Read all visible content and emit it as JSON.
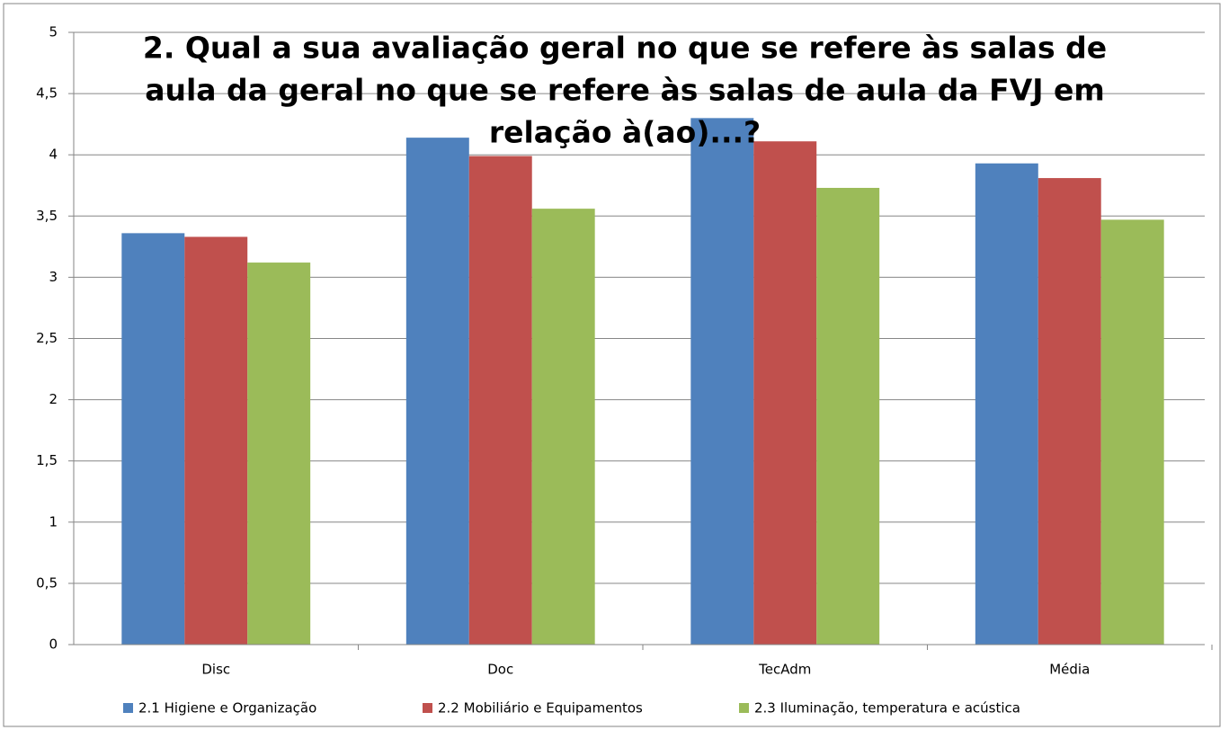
{
  "chart_data": {
    "type": "bar",
    "title": [
      "2. Qual a sua avaliação geral no que se refere às salas de",
      "aula da geral no que se refere às salas de aula da FVJ em",
      "relação à(ao)...?"
    ],
    "categories": [
      "Disc",
      "Doc",
      "TecAdm",
      "Média"
    ],
    "series": [
      {
        "name": "2.1 Higiene e Organização",
        "color": "#4f81bd",
        "values": [
          3.36,
          4.14,
          4.3,
          3.93
        ]
      },
      {
        "name": "2.2 Mobiliário e Equipamentos",
        "color": "#c0504d",
        "values": [
          3.33,
          3.99,
          4.11,
          3.81
        ]
      },
      {
        "name": "2.3 Iluminação, temperatura e acústica",
        "color": "#9bbb59",
        "values": [
          3.12,
          3.56,
          3.73,
          3.47
        ]
      }
    ],
    "ylim": [
      0,
      5
    ],
    "yticks": [
      0,
      {
        "value": 0.5,
        "label": "0,5"
      },
      1,
      {
        "value": 1.5,
        "label": "1,5"
      },
      2,
      {
        "value": 2.5,
        "label": "2,5"
      },
      3,
      {
        "value": 3.5,
        "label": "3,5"
      },
      4,
      {
        "value": 4.5,
        "label": "4,5"
      },
      5
    ],
    "grid": true,
    "legend": "bottom"
  }
}
